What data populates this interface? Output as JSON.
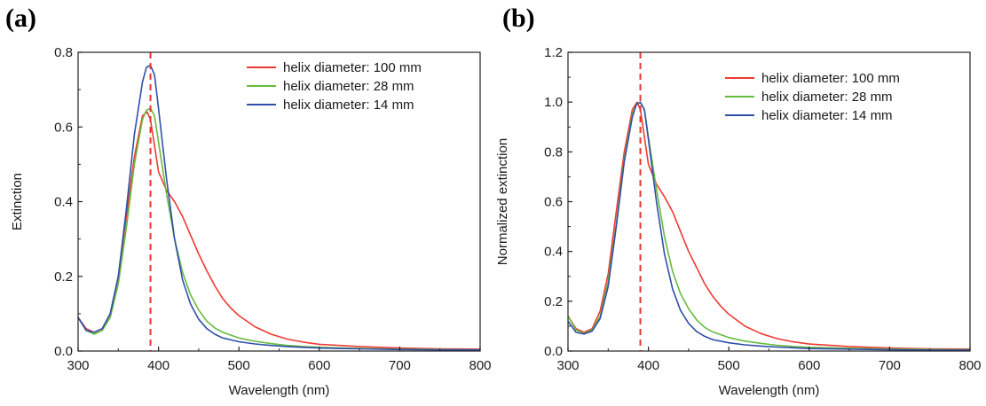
{
  "chart_data": [
    {
      "type": "line",
      "panel_label": "(a)",
      "xlabel": "Wavelength (nm)",
      "ylabel": "Extinction",
      "xlim": [
        300,
        800
      ],
      "ylim": [
        0,
        0.8
      ],
      "xticks": [
        300,
        400,
        500,
        600,
        700,
        800
      ],
      "yticks": [
        0.0,
        0.2,
        0.4,
        0.6,
        0.8
      ],
      "ytick_labels": [
        "0.0",
        "0.2",
        "0.4",
        "0.6",
        "0.8"
      ],
      "grid": false,
      "legend": "top-right",
      "reference_line_x": 390,
      "reference_line_color": "#e8352f",
      "series": [
        {
          "name": "helix diameter: 100 mm",
          "color": "#ee3b32",
          "x": [
            300,
            310,
            320,
            330,
            340,
            350,
            360,
            370,
            380,
            386,
            390,
            395,
            400,
            410,
            420,
            430,
            440,
            450,
            460,
            470,
            480,
            490,
            500,
            520,
            540,
            560,
            580,
            600,
            650,
            700,
            750,
            800
          ],
          "y": [
            0.09,
            0.06,
            0.05,
            0.06,
            0.1,
            0.2,
            0.36,
            0.52,
            0.63,
            0.64,
            0.62,
            0.55,
            0.48,
            0.43,
            0.4,
            0.36,
            0.31,
            0.26,
            0.215,
            0.175,
            0.14,
            0.115,
            0.095,
            0.065,
            0.045,
            0.032,
            0.024,
            0.018,
            0.012,
            0.008,
            0.006,
            0.005
          ]
        },
        {
          "name": "helix diameter: 28 mm",
          "color": "#66bb3d",
          "x": [
            300,
            310,
            320,
            330,
            340,
            350,
            360,
            370,
            380,
            385,
            390,
            395,
            400,
            410,
            420,
            430,
            440,
            450,
            460,
            470,
            480,
            500,
            520,
            540,
            560,
            580,
            600,
            650,
            700,
            750,
            800
          ],
          "y": [
            0.09,
            0.055,
            0.045,
            0.055,
            0.09,
            0.18,
            0.33,
            0.5,
            0.62,
            0.645,
            0.65,
            0.63,
            0.56,
            0.42,
            0.3,
            0.21,
            0.15,
            0.11,
            0.08,
            0.062,
            0.05,
            0.035,
            0.026,
            0.02,
            0.015,
            0.012,
            0.01,
            0.007,
            0.005,
            0.004,
            0.003
          ]
        },
        {
          "name": "helix diameter: 14 mm",
          "color": "#2f4fa8",
          "x": [
            300,
            310,
            320,
            330,
            340,
            350,
            360,
            370,
            380,
            385,
            390,
            395,
            400,
            410,
            420,
            430,
            440,
            450,
            460,
            470,
            480,
            500,
            520,
            540,
            560,
            580,
            600,
            650,
            700,
            750,
            800
          ],
          "y": [
            0.09,
            0.055,
            0.05,
            0.06,
            0.1,
            0.2,
            0.38,
            0.58,
            0.72,
            0.76,
            0.765,
            0.74,
            0.65,
            0.46,
            0.3,
            0.19,
            0.125,
            0.085,
            0.06,
            0.045,
            0.035,
            0.025,
            0.019,
            0.015,
            0.012,
            0.01,
            0.008,
            0.006,
            0.004,
            0.003,
            0.003
          ]
        }
      ]
    },
    {
      "type": "line",
      "panel_label": "(b)",
      "xlabel": "Wavelength (nm)",
      "ylabel": "Normalized extinction",
      "xlim": [
        300,
        800
      ],
      "ylim": [
        0,
        1.2
      ],
      "xticks": [
        300,
        400,
        500,
        600,
        700,
        800
      ],
      "yticks": [
        0.0,
        0.2,
        0.4,
        0.6,
        0.8,
        1.0,
        1.2
      ],
      "ytick_labels": [
        "0.0",
        "0.2",
        "0.4",
        "0.6",
        "0.8",
        "1.0",
        "1.2"
      ],
      "grid": false,
      "legend": "top-right",
      "reference_line_x": 390,
      "reference_line_color": "#e8352f",
      "series": [
        {
          "name": "helix diameter: 100 mm",
          "color": "#ee3b32",
          "x": [
            300,
            310,
            320,
            330,
            340,
            350,
            360,
            370,
            380,
            386,
            390,
            395,
            400,
            410,
            420,
            430,
            440,
            450,
            460,
            470,
            480,
            490,
            500,
            520,
            540,
            560,
            580,
            600,
            650,
            700,
            750,
            800
          ],
          "y": [
            0.14,
            0.09,
            0.075,
            0.09,
            0.16,
            0.31,
            0.56,
            0.8,
            0.97,
            1.0,
            0.97,
            0.86,
            0.75,
            0.67,
            0.62,
            0.56,
            0.48,
            0.4,
            0.335,
            0.27,
            0.22,
            0.18,
            0.148,
            0.1,
            0.07,
            0.05,
            0.037,
            0.028,
            0.018,
            0.012,
            0.009,
            0.008
          ]
        },
        {
          "name": "helix diameter: 28 mm",
          "color": "#66bb3d",
          "x": [
            300,
            310,
            320,
            330,
            340,
            350,
            360,
            370,
            380,
            385,
            390,
            395,
            400,
            410,
            420,
            430,
            440,
            450,
            460,
            470,
            480,
            500,
            520,
            540,
            560,
            580,
            600,
            650,
            700,
            750,
            800
          ],
          "y": [
            0.14,
            0.085,
            0.07,
            0.085,
            0.14,
            0.28,
            0.51,
            0.77,
            0.95,
            0.99,
            1.0,
            0.97,
            0.86,
            0.65,
            0.46,
            0.32,
            0.23,
            0.17,
            0.125,
            0.095,
            0.077,
            0.054,
            0.04,
            0.031,
            0.023,
            0.018,
            0.015,
            0.011,
            0.008,
            0.006,
            0.005
          ]
        },
        {
          "name": "helix diameter: 14 mm",
          "color": "#2f4fa8",
          "x": [
            300,
            310,
            320,
            330,
            340,
            350,
            360,
            370,
            380,
            385,
            390,
            395,
            400,
            410,
            420,
            430,
            440,
            450,
            460,
            470,
            480,
            500,
            520,
            540,
            560,
            580,
            600,
            650,
            700,
            750,
            800
          ],
          "y": [
            0.12,
            0.075,
            0.068,
            0.08,
            0.13,
            0.26,
            0.5,
            0.76,
            0.94,
            0.99,
            1.0,
            0.97,
            0.85,
            0.6,
            0.39,
            0.25,
            0.163,
            0.111,
            0.078,
            0.059,
            0.046,
            0.033,
            0.025,
            0.02,
            0.016,
            0.013,
            0.01,
            0.008,
            0.005,
            0.004,
            0.004
          ]
        }
      ]
    }
  ]
}
